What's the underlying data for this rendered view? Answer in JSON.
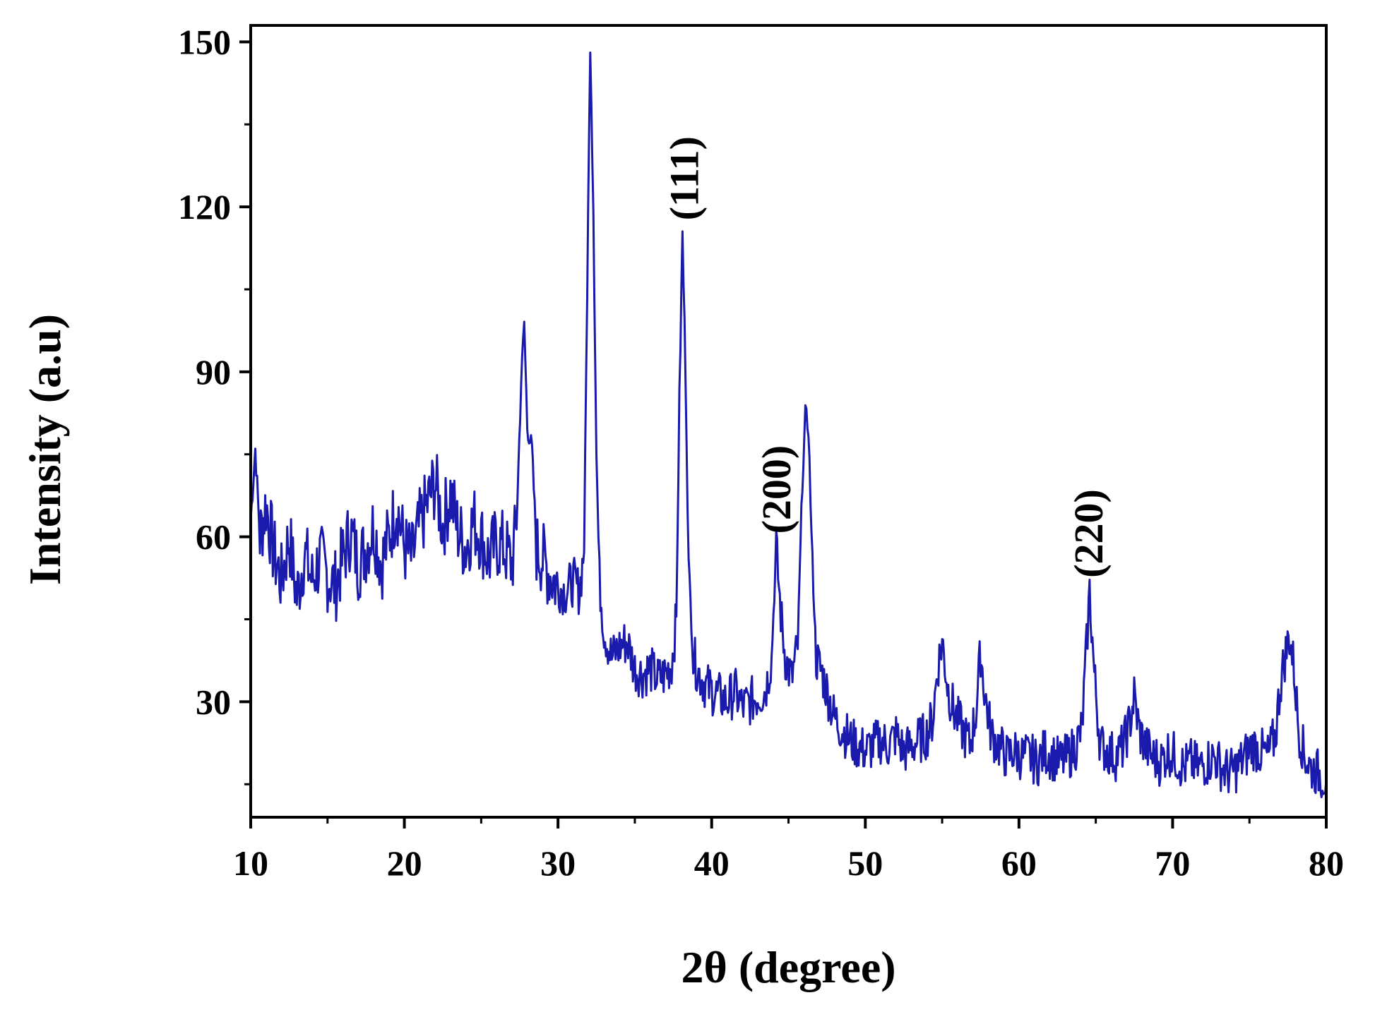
{
  "chart_data": {
    "type": "line",
    "title": "",
    "xlabel": "2θ (degree)",
    "ylabel": "Intensity (a.u)",
    "xlim": [
      10,
      80
    ],
    "ylim": [
      9,
      153
    ],
    "x_ticks": [
      10,
      20,
      30,
      40,
      50,
      60,
      70,
      80
    ],
    "y_ticks": [
      30,
      60,
      90,
      120,
      150
    ],
    "grid": false,
    "legend": "none",
    "line_color": "#1a1aad",
    "series": [
      {
        "x": [
          10.0,
          10.3,
          10.6,
          11.0,
          11.5,
          12.0,
          12.5,
          13.0,
          13.5,
          14.0,
          14.5,
          15.0,
          15.5,
          16.0,
          16.5,
          17.0,
          17.5,
          18.0,
          18.5,
          19.0,
          19.5,
          20.0,
          20.5,
          21.0,
          21.5,
          22.0,
          22.5,
          23.0,
          23.5,
          24.0,
          24.5,
          25.0,
          25.5,
          26.0,
          26.5,
          27.0,
          27.3,
          27.6,
          27.8,
          28.0,
          28.3,
          28.6,
          29.0,
          29.5,
          30.0,
          30.5,
          31.0,
          31.4,
          31.7,
          31.9,
          32.1,
          32.3,
          32.5,
          32.7,
          33.0,
          33.5,
          34.0,
          34.5,
          35.0,
          35.5,
          36.0,
          36.5,
          37.0,
          37.4,
          37.7,
          37.9,
          38.1,
          38.3,
          38.5,
          38.8,
          39.2,
          39.6,
          40.0,
          40.5,
          41.0,
          41.5,
          42.0,
          42.5,
          43.0,
          43.5,
          43.9,
          44.2,
          44.5,
          44.8,
          45.2,
          45.6,
          45.9,
          46.1,
          46.3,
          46.5,
          46.8,
          47.2,
          47.6,
          48.0,
          48.5,
          49.0,
          49.5,
          50.0,
          50.5,
          51.0,
          51.5,
          52.0,
          52.5,
          53.0,
          53.5,
          54.0,
          54.4,
          54.7,
          55.0,
          55.4,
          55.8,
          56.3,
          56.8,
          57.2,
          57.5,
          57.8,
          58.2,
          58.7,
          59.2,
          59.7,
          60.2,
          60.7,
          61.2,
          61.7,
          62.2,
          62.7,
          63.2,
          63.7,
          64.1,
          64.4,
          64.6,
          64.9,
          65.3,
          65.8,
          66.3,
          66.8,
          67.2,
          67.5,
          67.8,
          68.2,
          68.7,
          69.2,
          69.7,
          70.2,
          70.7,
          71.2,
          71.7,
          72.2,
          72.7,
          73.2,
          73.7,
          74.2,
          74.7,
          75.2,
          75.7,
          76.2,
          76.7,
          77.0,
          77.3,
          77.6,
          77.9,
          78.2,
          78.6,
          79.0,
          79.5,
          80.0
        ],
        "y": [
          63,
          76,
          60,
          66,
          57,
          52,
          60,
          49,
          57,
          52,
          56,
          53,
          51,
          56,
          61,
          55,
          58,
          62,
          55,
          60,
          66,
          58,
          56,
          62,
          66,
          70,
          62,
          68,
          61,
          58,
          63,
          60,
          56,
          59,
          58,
          55,
          62,
          88,
          99,
          80,
          76,
          58,
          56,
          53,
          51,
          50,
          52,
          50,
          58,
          105,
          150,
          120,
          75,
          52,
          43,
          38,
          40,
          41,
          36,
          35,
          36,
          34,
          35,
          37,
          45,
          85,
          115,
          90,
          55,
          38,
          35,
          33,
          32,
          31,
          30,
          32,
          29,
          30,
          31,
          32,
          38,
          58,
          46,
          38,
          34,
          40,
          70,
          82,
          80,
          60,
          38,
          35,
          31,
          27,
          25,
          23,
          22,
          21,
          22,
          23,
          22,
          24,
          21,
          22,
          23,
          24,
          27,
          36,
          41,
          32,
          28,
          25,
          22,
          28,
          39,
          31,
          24,
          22,
          20,
          21,
          20,
          20,
          19,
          21,
          20,
          19,
          20,
          22,
          25,
          40,
          50,
          35,
          22,
          21,
          20,
          22,
          26,
          31,
          25,
          22,
          20,
          19,
          21,
          20,
          18,
          19,
          18,
          19,
          20,
          18,
          17,
          18,
          20,
          22,
          21,
          20,
          24,
          33,
          38,
          42,
          36,
          25,
          20,
          18,
          17,
          16
        ]
      }
    ],
    "annotations": [
      {
        "text": "(111)",
        "x": 38.2,
        "y": 116
      },
      {
        "text": "(200)",
        "x": 44.2,
        "y": 59
      },
      {
        "text": "(220)",
        "x": 64.5,
        "y": 51
      }
    ]
  }
}
